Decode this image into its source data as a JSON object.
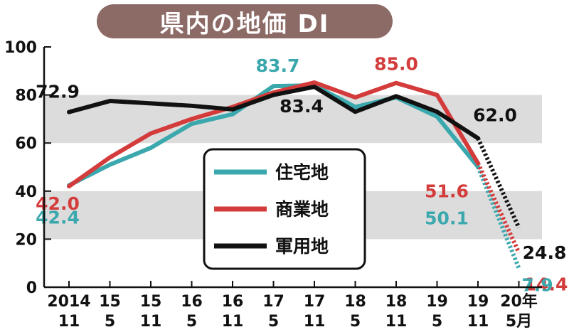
{
  "chart_data": {
    "type": "line",
    "title": "県内の地価 DI",
    "x_labels": [
      {
        "top": "2014",
        "bottom": "11"
      },
      {
        "top": "15",
        "bottom": "5"
      },
      {
        "top": "15",
        "bottom": "11"
      },
      {
        "top": "16",
        "bottom": "5"
      },
      {
        "top": "16",
        "bottom": "11"
      },
      {
        "top": "17",
        "bottom": "5"
      },
      {
        "top": "17",
        "bottom": "11"
      },
      {
        "top": "18",
        "bottom": "5"
      },
      {
        "top": "18",
        "bottom": "11"
      },
      {
        "top": "19",
        "bottom": "5"
      },
      {
        "top": "19",
        "bottom": "11"
      },
      {
        "top": "20年",
        "bottom": "5月"
      }
    ],
    "y_ticks": [
      "0",
      "20",
      "40",
      "60",
      "80",
      "100"
    ],
    "ylim": [
      0,
      100
    ],
    "grid": false,
    "bands": [
      [
        20,
        40
      ],
      [
        60,
        80
      ]
    ],
    "legend_position": "center",
    "series": [
      {
        "name": "住宅地",
        "color": "#3aa8ad",
        "values": [
          42.4,
          51,
          58,
          68,
          72,
          83.7,
          84,
          75,
          79,
          71,
          50.1,
          7.9
        ],
        "dashed_last": true
      },
      {
        "name": "商業地",
        "color": "#d43b3b",
        "values": [
          42.0,
          54,
          64,
          70,
          75,
          81,
          85.2,
          79,
          85.0,
          80,
          51.6,
          14.4
        ],
        "dashed_last": true
      },
      {
        "name": "軍用地",
        "color": "#111111",
        "values": [
          72.9,
          77.5,
          76.5,
          75.5,
          74,
          80,
          83.4,
          73,
          79.5,
          73,
          62.0,
          24.8
        ],
        "dashed_last": true
      }
    ],
    "annotations": [
      {
        "text": "72.9",
        "color": "#111111",
        "index": 0,
        "value": 72.9
      },
      {
        "text": "42.4",
        "color": "#3aa8ad",
        "index": 0,
        "value": 42.4
      },
      {
        "text": "42.0",
        "color": "#d43b3b",
        "index": 0,
        "value": 42.0
      },
      {
        "text": "83.7",
        "color": "#3aa8ad",
        "index": 5,
        "value": 83.7
      },
      {
        "text": "83.4",
        "color": "#111111",
        "index": 6,
        "value": 83.4
      },
      {
        "text": "85.0",
        "color": "#d43b3b",
        "index": 8,
        "value": 85.0
      },
      {
        "text": "62.0",
        "color": "#111111",
        "index": 10,
        "value": 62.0
      },
      {
        "text": "51.6",
        "color": "#d43b3b",
        "index": 10,
        "value": 51.6
      },
      {
        "text": "50.1",
        "color": "#3aa8ad",
        "index": 10,
        "value": 50.1
      },
      {
        "text": "24.8",
        "color": "#111111",
        "index": 11,
        "value": 24.8
      },
      {
        "text": "14.4",
        "color": "#d43b3b",
        "index": 11,
        "value": 14.4
      },
      {
        "text": "7.9",
        "color": "#3aa8ad",
        "index": 11,
        "value": 7.9
      }
    ]
  }
}
